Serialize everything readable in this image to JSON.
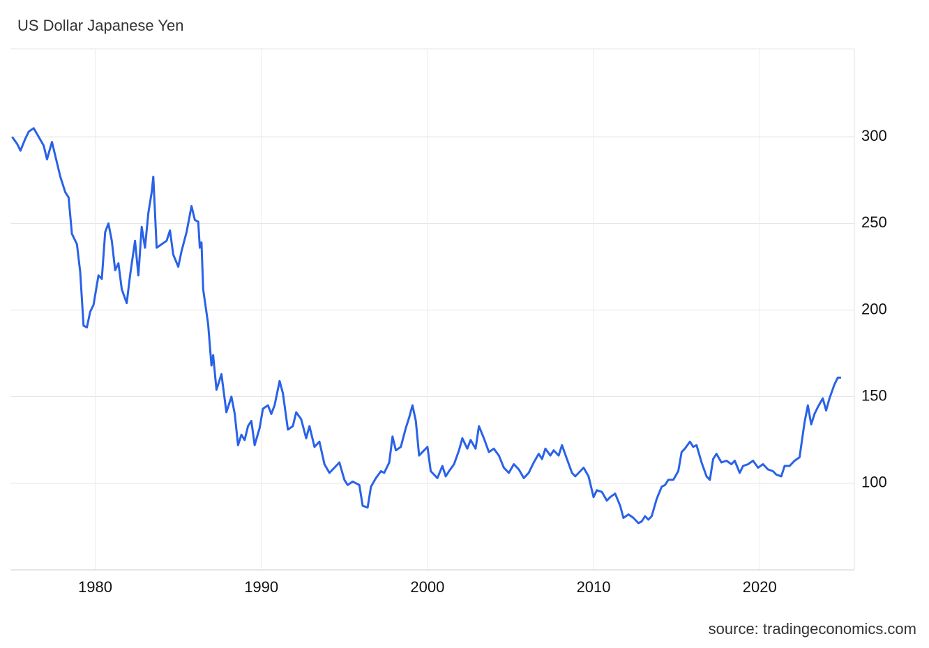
{
  "chart_data": {
    "type": "line",
    "title": "US Dollar Japanese Yen",
    "source": "source: tradingeconomics.com",
    "xlim": [
      1974.9,
      2025.7
    ],
    "xticks": [
      1980,
      1990,
      2000,
      2010,
      2020
    ],
    "ylim": [
      50,
      350
    ],
    "yticks": [
      100,
      150,
      200,
      250,
      300
    ],
    "grid": true,
    "series": [
      {
        "name": "USDJPY",
        "color": "#2962e8",
        "x": [
          1975.0,
          1975.3,
          1975.5,
          1975.8,
          1976.0,
          1976.3,
          1976.6,
          1976.9,
          1977.1,
          1977.4,
          1977.7,
          1977.9,
          1978.2,
          1978.4,
          1978.6,
          1978.9,
          1979.1,
          1979.3,
          1979.5,
          1979.7,
          1979.9,
          1980.2,
          1980.4,
          1980.6,
          1980.8,
          1981.0,
          1981.2,
          1981.4,
          1981.6,
          1981.9,
          1982.1,
          1982.4,
          1982.6,
          1982.8,
          1983.0,
          1983.2,
          1983.4,
          1983.5,
          1983.7,
          1984.0,
          1984.3,
          1984.5,
          1984.7,
          1985.0,
          1985.2,
          1985.5,
          1985.8,
          1986.0,
          1986.2,
          1986.3,
          1986.4,
          1986.5,
          1986.8,
          1987.0,
          1987.1,
          1987.3,
          1987.6,
          1987.9,
          1988.2,
          1988.4,
          1988.6,
          1988.8,
          1989.0,
          1989.2,
          1989.4,
          1989.6,
          1989.9,
          1990.1,
          1990.4,
          1990.6,
          1990.8,
          1991.1,
          1991.3,
          1991.6,
          1991.9,
          1992.1,
          1992.4,
          1992.7,
          1992.9,
          1993.2,
          1993.5,
          1993.8,
          1994.1,
          1994.4,
          1994.7,
          1995.0,
          1995.2,
          1995.5,
          1995.9,
          1996.1,
          1996.4,
          1996.6,
          1996.9,
          1997.2,
          1997.4,
          1997.7,
          1997.9,
          1998.1,
          1998.4,
          1998.7,
          1998.9,
          1999.1,
          1999.3,
          1999.5,
          1999.7,
          2000.0,
          2000.2,
          2000.6,
          2000.9,
          2001.1,
          2001.3,
          2001.6,
          2001.9,
          2002.1,
          2002.4,
          2002.6,
          2002.9,
          2003.1,
          2003.4,
          2003.7,
          2004.0,
          2004.3,
          2004.6,
          2004.9,
          2005.2,
          2005.5,
          2005.8,
          2006.1,
          2006.4,
          2006.7,
          2006.9,
          2007.1,
          2007.4,
          2007.6,
          2007.9,
          2008.1,
          2008.4,
          2008.7,
          2008.9,
          2009.2,
          2009.4,
          2009.7,
          2010.0,
          2010.2,
          2010.5,
          2010.8,
          2011.0,
          2011.3,
          2011.6,
          2011.8,
          2012.1,
          2012.4,
          2012.7,
          2012.9,
          2013.1,
          2013.3,
          2013.5,
          2013.8,
          2014.1,
          2014.3,
          2014.5,
          2014.8,
          2015.1,
          2015.3,
          2015.5,
          2015.8,
          2016.0,
          2016.2,
          2016.5,
          2016.8,
          2017.0,
          2017.2,
          2017.4,
          2017.7,
          2018.0,
          2018.3,
          2018.5,
          2018.8,
          2019.0,
          2019.3,
          2019.6,
          2019.9,
          2020.2,
          2020.5,
          2020.8,
          2021.0,
          2021.3,
          2021.5,
          2021.8,
          2022.1,
          2022.4,
          2022.7,
          2022.9,
          2023.1,
          2023.3,
          2023.5,
          2023.8,
          2024.0,
          2024.2,
          2024.5,
          2024.7,
          2024.9
        ],
        "values": [
          300,
          296,
          292,
          299,
          303,
          305,
          300,
          295,
          287,
          297,
          285,
          277,
          268,
          265,
          244,
          238,
          222,
          191,
          190,
          199,
          203,
          220,
          218,
          245,
          250,
          240,
          223,
          227,
          212,
          204,
          220,
          240,
          220,
          248,
          236,
          256,
          268,
          277,
          236,
          238,
          240,
          246,
          232,
          225,
          234,
          245,
          260,
          252,
          251,
          236,
          239,
          212,
          192,
          168,
          174,
          154,
          163,
          141,
          150,
          140,
          122,
          128,
          125,
          133,
          136,
          122,
          132,
          143,
          145,
          140,
          145,
          159,
          152,
          131,
          133,
          141,
          137,
          126,
          133,
          121,
          124,
          111,
          106,
          109,
          112,
          102,
          99,
          101,
          99,
          87,
          86,
          98,
          103,
          107,
          106,
          112,
          127,
          119,
          121,
          132,
          138,
          145,
          136,
          116,
          118,
          121,
          107,
          103,
          110,
          104,
          107,
          111,
          119,
          126,
          120,
          125,
          120,
          133,
          126,
          118,
          120,
          116,
          109,
          106,
          111,
          108,
          103,
          106,
          112,
          117,
          114,
          120,
          116,
          119,
          116,
          122,
          114,
          106,
          104,
          107,
          109,
          104,
          92,
          96,
          95,
          90,
          92,
          94,
          87,
          80,
          82,
          80,
          77,
          78,
          81,
          79,
          81,
          91,
          98,
          99,
          102,
          102,
          107,
          118,
          120,
          124,
          121,
          122,
          112,
          104,
          102,
          114,
          117,
          112,
          113,
          111,
          113,
          106,
          110,
          111,
          113,
          109,
          111,
          108,
          107,
          105,
          104,
          110,
          110,
          113,
          115,
          135,
          145,
          134,
          140,
          144,
          149,
          142,
          149,
          157,
          161,
          161
        ]
      }
    ]
  }
}
